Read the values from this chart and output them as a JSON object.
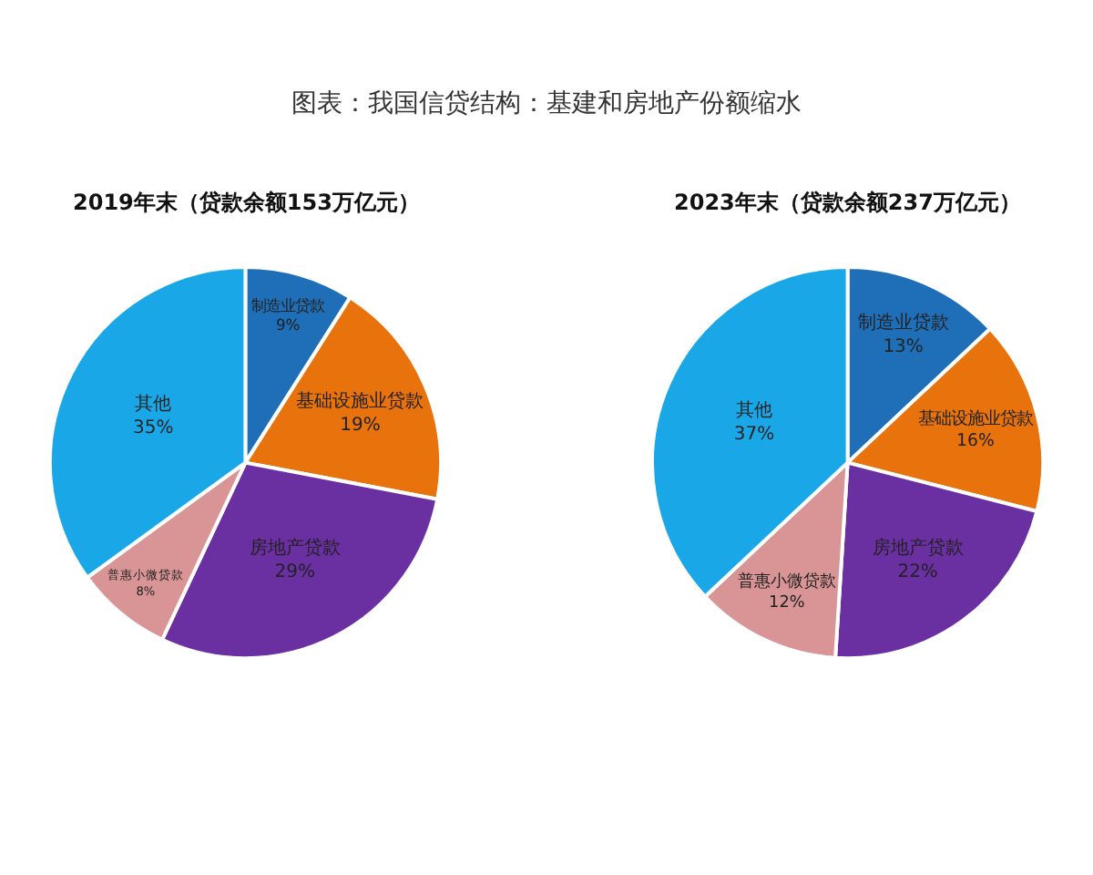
{
  "chart_data": [
    {
      "type": "pie",
      "title": "2019年末（贷款余额153万亿元）",
      "annotations": [
        "图表：我国信贷结构：基建和房地产份额缩水"
      ],
      "categories": [
        "制造业贷款",
        "基础设施业贷款",
        "房地产贷款",
        "普惠小微贷款",
        "其他"
      ],
      "values": [
        9,
        19,
        29,
        8,
        35
      ],
      "value_labels": [
        "9%",
        "19%",
        "29%",
        "8%",
        "35%"
      ],
      "colors": [
        "#1f6fb8",
        "#e8730c",
        "#6a2fa0",
        "#d99595",
        "#1aa7e8"
      ]
    },
    {
      "type": "pie",
      "title": "2023年末（贷款余额237万亿元）",
      "categories": [
        "制造业贷款",
        "基础设施业贷款",
        "房地产贷款",
        "普惠小微贷款",
        "其他"
      ],
      "values": [
        13,
        16,
        22,
        12,
        37
      ],
      "value_labels": [
        "13%",
        "16%",
        "22%",
        "12%",
        "37%"
      ],
      "colors": [
        "#1f6fb8",
        "#e8730c",
        "#6a2fa0",
        "#d99595",
        "#1aa7e8"
      ]
    }
  ]
}
